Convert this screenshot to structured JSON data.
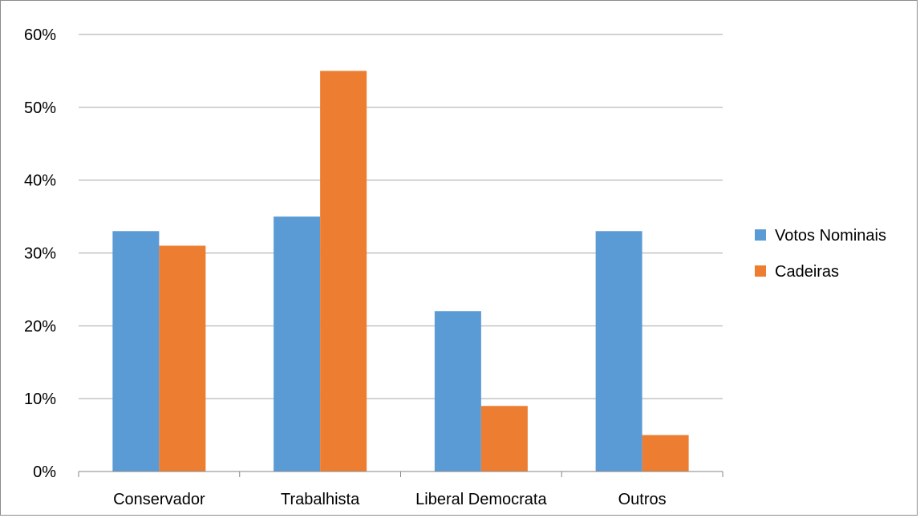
{
  "chart_data": {
    "type": "bar",
    "categories": [
      "Conservador",
      "Trabalhista",
      "Liberal Democrata",
      "Outros"
    ],
    "series": [
      {
        "name": "Votos Nominais",
        "values": [
          33,
          35,
          22,
          33
        ],
        "color": "#5b9bd5"
      },
      {
        "name": "Cadeiras",
        "values": [
          31,
          55,
          9,
          5
        ],
        "color": "#ed7d31"
      }
    ],
    "ylim": [
      0,
      60
    ],
    "yticks": [
      "0%",
      "10%",
      "20%",
      "30%",
      "40%",
      "50%",
      "60%"
    ],
    "grid": true,
    "legend_position": "right",
    "gridline_color": "#a6a6a6",
    "axis_color": "#868686"
  }
}
